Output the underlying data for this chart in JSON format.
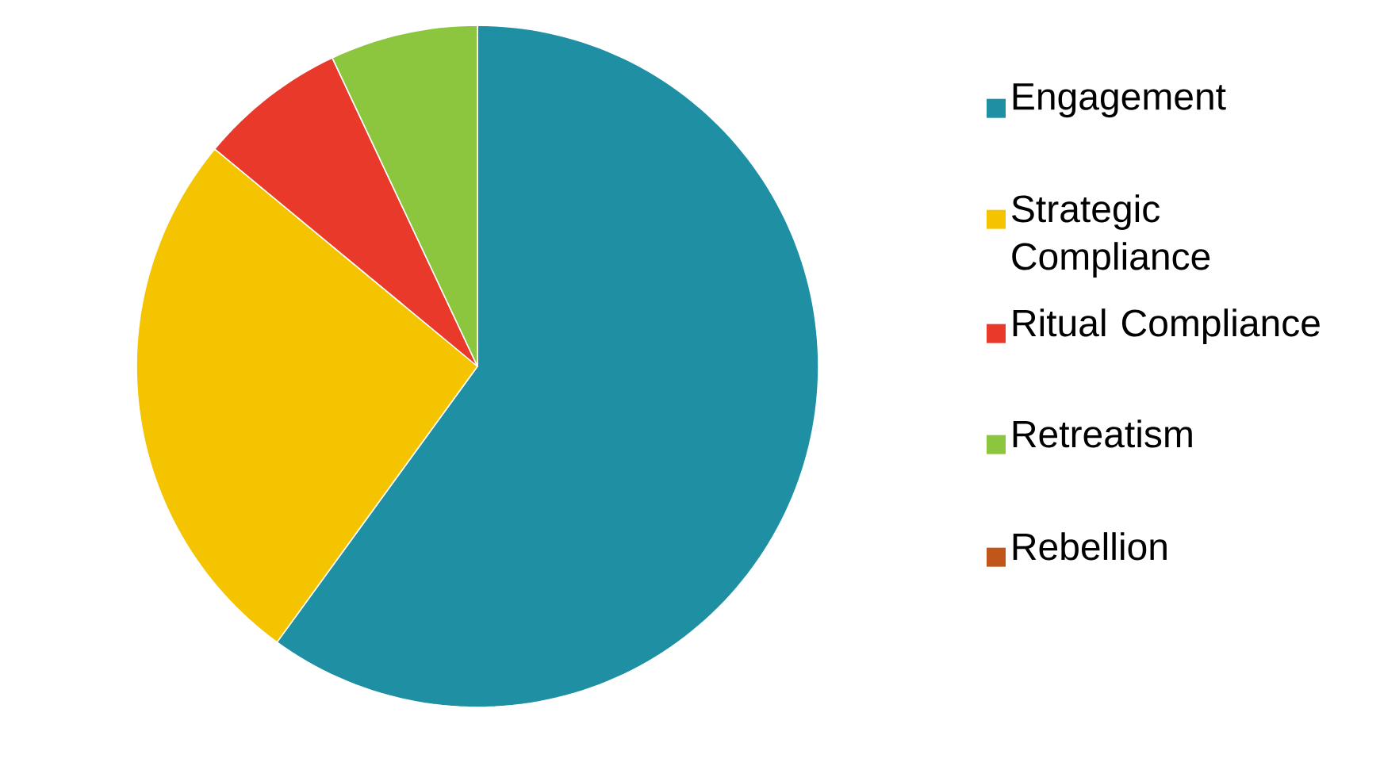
{
  "chart_data": {
    "type": "pie",
    "categories": [
      "Engagement",
      "Strategic Compliance",
      "Ritual Compliance",
      "Retreatism",
      "Rebellion"
    ],
    "values": [
      60,
      26,
      7,
      7,
      0
    ],
    "colors": [
      "#1f8fa3",
      "#f5c400",
      "#e8392b",
      "#8cc63f",
      "#c0561a"
    ],
    "legend": "right"
  }
}
